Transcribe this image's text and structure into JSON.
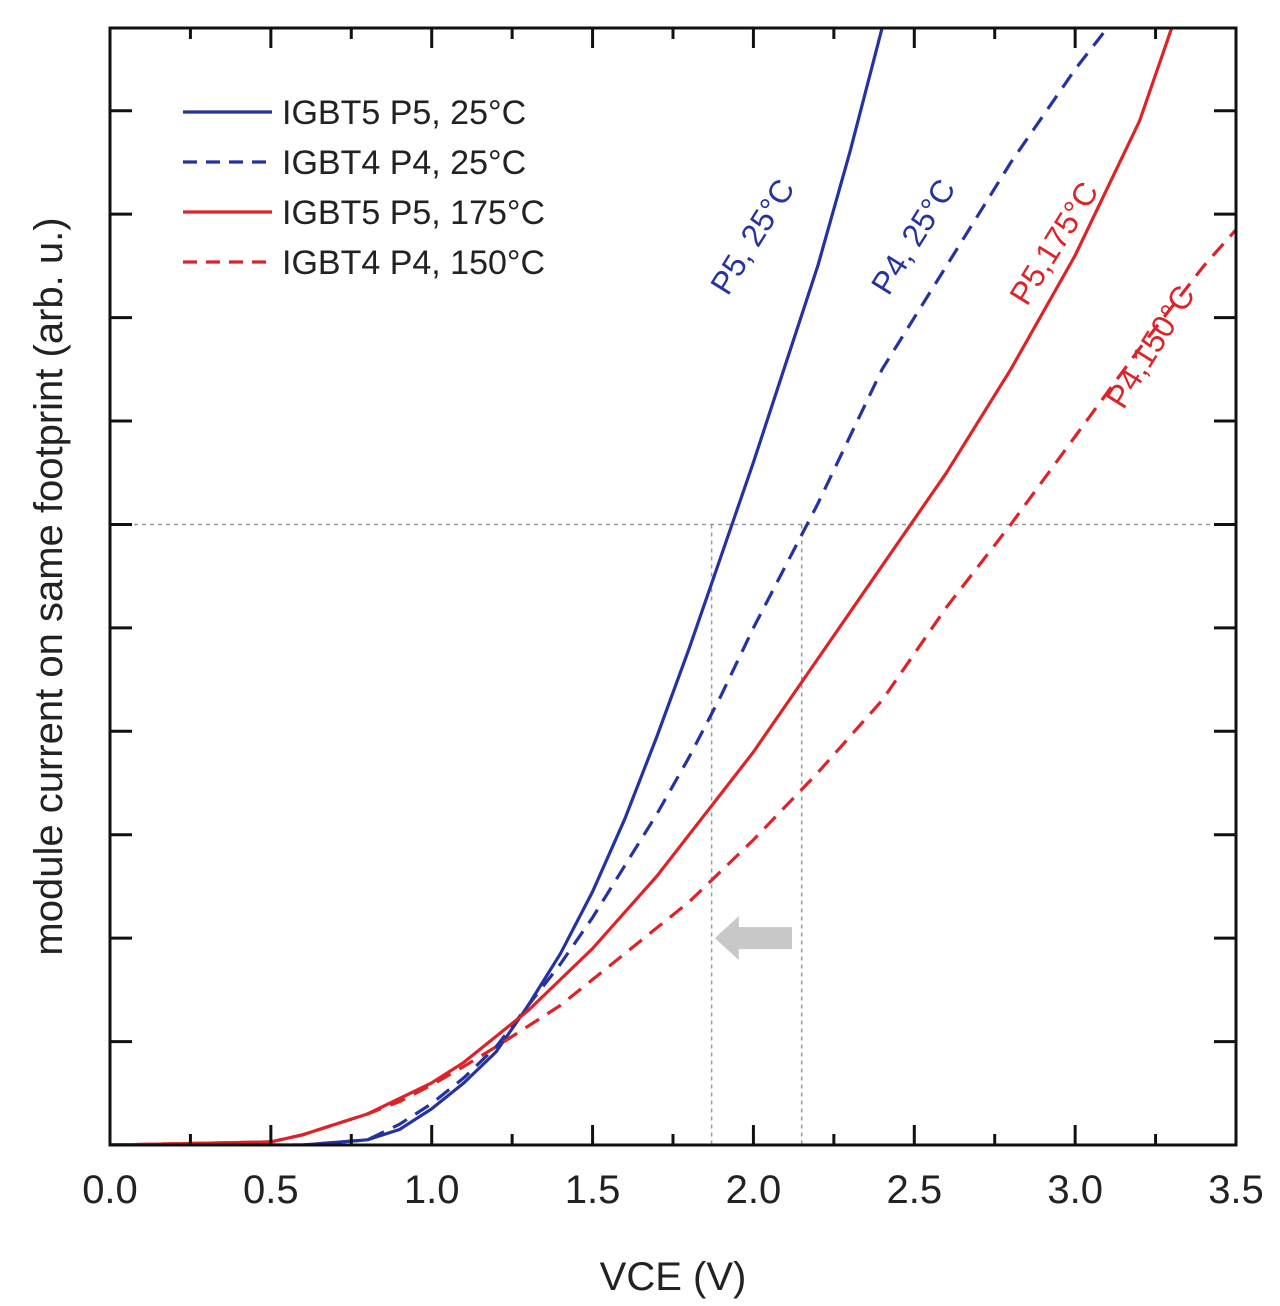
{
  "chart_data": {
    "type": "line",
    "xlabel": "VCE (V)",
    "ylabel": "module current on same footprint (arb. u.)",
    "xlim": [
      0.0,
      3.5
    ],
    "ylim": [
      0,
      10.8
    ],
    "x_ticks": [
      "0.0",
      "0.5",
      "1.0",
      "1.5",
      "2.0",
      "2.5",
      "3.0",
      "3.5"
    ],
    "x_tick_values": [
      0.0,
      0.5,
      1.0,
      1.5,
      2.0,
      2.5,
      3.0,
      3.5
    ],
    "y_tick_values": [
      1,
      2,
      3,
      4,
      5,
      6,
      7,
      8,
      9,
      10
    ],
    "x_minor_ticks": [
      0.25,
      0.75,
      1.25,
      1.75,
      2.25,
      2.75,
      3.25
    ],
    "grid": false,
    "legend_position": "top-left",
    "reference_lines": {
      "horizontal_y": 6,
      "vertical_x": [
        1.87,
        2.15
      ]
    },
    "arrow": {
      "from_x": 2.12,
      "to_x": 1.88,
      "y": 2.0,
      "color": "#c8c8c8"
    },
    "series": [
      {
        "name": "IGBT5 P5, 25°C",
        "color": "#2433a0",
        "dash": "solid",
        "curve_label": "P5, 25°C",
        "label_at": [
          1.92,
          8.2
        ],
        "x": [
          0.0,
          0.6,
          0.8,
          0.9,
          1.0,
          1.1,
          1.2,
          1.3,
          1.4,
          1.5,
          1.6,
          1.7,
          1.8,
          1.9,
          2.0,
          2.1,
          2.2,
          2.3,
          2.4
        ],
        "y": [
          0.0,
          0.0,
          0.05,
          0.15,
          0.35,
          0.6,
          0.9,
          1.35,
          1.85,
          2.45,
          3.15,
          3.95,
          4.8,
          5.7,
          6.6,
          7.55,
          8.5,
          9.6,
          10.8
        ]
      },
      {
        "name": "IGBT4 P4, 25°C",
        "color": "#2433a0",
        "dash": "dashed",
        "curve_label": "P4, 25°C",
        "label_at": [
          2.42,
          8.2
        ],
        "x": [
          0.0,
          0.6,
          0.8,
          0.9,
          1.0,
          1.1,
          1.2,
          1.3,
          1.4,
          1.5,
          1.6,
          1.7,
          1.8,
          1.9,
          2.0,
          2.1,
          2.2,
          2.3,
          2.4,
          2.6,
          2.8,
          3.0,
          3.1
        ],
        "y": [
          0.0,
          0.0,
          0.05,
          0.2,
          0.4,
          0.65,
          0.95,
          1.35,
          1.75,
          2.2,
          2.7,
          3.2,
          3.75,
          4.35,
          5.0,
          5.6,
          6.2,
          6.85,
          7.5,
          8.5,
          9.5,
          10.4,
          10.8
        ]
      },
      {
        "name": "IGBT5 P5, 175°C",
        "color": "#dd2328",
        "dash": "solid",
        "curve_label": "P5,175°C",
        "label_at": [
          2.85,
          8.1
        ],
        "x": [
          0.0,
          0.5,
          0.6,
          0.7,
          0.8,
          0.9,
          1.0,
          1.1,
          1.2,
          1.3,
          1.4,
          1.5,
          1.6,
          1.7,
          1.8,
          1.9,
          2.0,
          2.2,
          2.4,
          2.6,
          2.8,
          3.0,
          3.2,
          3.3
        ],
        "y": [
          0.0,
          0.03,
          0.1,
          0.2,
          0.3,
          0.45,
          0.6,
          0.8,
          1.05,
          1.3,
          1.6,
          1.9,
          2.25,
          2.6,
          3.0,
          3.4,
          3.8,
          4.7,
          5.6,
          6.5,
          7.5,
          8.6,
          9.9,
          10.8
        ]
      },
      {
        "name": "IGBT4 P4, 150°C",
        "color": "#dd2328",
        "dash": "dashed",
        "curve_label": "P4,150°C",
        "label_at": [
          3.15,
          7.1
        ],
        "x": [
          0.0,
          0.5,
          0.6,
          0.7,
          0.8,
          0.9,
          1.0,
          1.1,
          1.2,
          1.3,
          1.4,
          1.5,
          1.6,
          1.7,
          1.8,
          1.9,
          2.0,
          2.2,
          2.4,
          2.6,
          2.8,
          3.0,
          3.2,
          3.4,
          3.5
        ],
        "y": [
          0.0,
          0.03,
          0.1,
          0.2,
          0.3,
          0.42,
          0.58,
          0.76,
          0.95,
          1.15,
          1.35,
          1.6,
          1.85,
          2.1,
          2.35,
          2.65,
          2.95,
          3.6,
          4.3,
          5.2,
          6.0,
          6.85,
          7.7,
          8.5,
          8.85
        ]
      }
    ]
  }
}
